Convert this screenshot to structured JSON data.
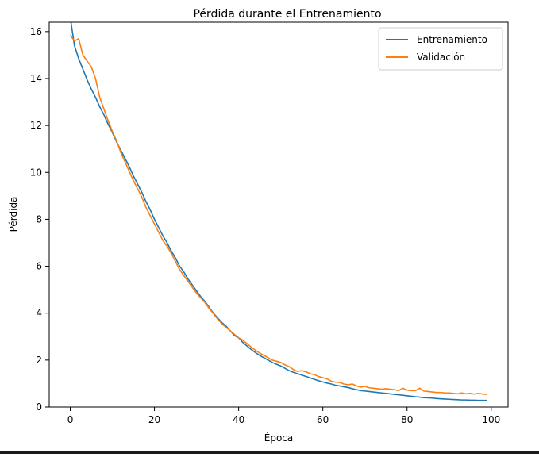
{
  "chart_data": {
    "type": "line",
    "title": "Pérdida durante el Entrenamiento",
    "xlabel": "Época",
    "ylabel": "Pérdida",
    "xlim": [
      -5,
      104
    ],
    "ylim": [
      0,
      16.4
    ],
    "xticks": [
      0,
      20,
      40,
      60,
      80,
      100
    ],
    "yticks": [
      0,
      2,
      4,
      6,
      8,
      10,
      12,
      14,
      16
    ],
    "grid": false,
    "legend_position": "top-right",
    "x": [
      0,
      1,
      2,
      3,
      4,
      5,
      6,
      7,
      8,
      9,
      10,
      11,
      12,
      13,
      14,
      15,
      16,
      17,
      18,
      19,
      20,
      21,
      22,
      23,
      24,
      25,
      26,
      27,
      28,
      29,
      30,
      31,
      32,
      33,
      34,
      35,
      36,
      37,
      38,
      39,
      40,
      41,
      42,
      43,
      44,
      45,
      46,
      47,
      48,
      49,
      50,
      51,
      52,
      53,
      54,
      55,
      56,
      57,
      58,
      59,
      60,
      61,
      62,
      63,
      64,
      65,
      66,
      67,
      68,
      69,
      70,
      71,
      72,
      73,
      74,
      75,
      76,
      77,
      78,
      79,
      80,
      81,
      82,
      83,
      84,
      85,
      86,
      87,
      88,
      89,
      90,
      91,
      92,
      93,
      94,
      95,
      96,
      97,
      98,
      99
    ],
    "series": [
      {
        "name": "Entrenamiento",
        "color": "#1f77b4",
        "values": [
          16.6,
          15.4,
          14.85,
          14.4,
          13.95,
          13.55,
          13.2,
          12.8,
          12.45,
          12.05,
          11.7,
          11.3,
          10.95,
          10.6,
          10.25,
          9.85,
          9.5,
          9.15,
          8.75,
          8.4,
          8.0,
          7.65,
          7.3,
          7.0,
          6.65,
          6.35,
          6.0,
          5.75,
          5.45,
          5.2,
          4.95,
          4.7,
          4.5,
          4.25,
          4.0,
          3.8,
          3.6,
          3.45,
          3.25,
          3.05,
          2.95,
          2.75,
          2.6,
          2.45,
          2.32,
          2.2,
          2.1,
          2.0,
          1.9,
          1.82,
          1.75,
          1.65,
          1.55,
          1.48,
          1.42,
          1.36,
          1.3,
          1.24,
          1.18,
          1.12,
          1.07,
          1.02,
          0.98,
          0.93,
          0.9,
          0.86,
          0.83,
          0.78,
          0.74,
          0.7,
          0.68,
          0.66,
          0.64,
          0.62,
          0.6,
          0.58,
          0.56,
          0.54,
          0.52,
          0.5,
          0.48,
          0.46,
          0.44,
          0.42,
          0.4,
          0.39,
          0.38,
          0.36,
          0.35,
          0.34,
          0.33,
          0.32,
          0.31,
          0.3,
          0.3,
          0.29,
          0.29,
          0.28,
          0.28,
          0.28
        ]
      },
      {
        "name": "Validación",
        "color": "#ff7f0e",
        "values": [
          15.85,
          15.6,
          15.7,
          15.0,
          14.75,
          14.5,
          14.0,
          13.2,
          12.7,
          12.2,
          11.75,
          11.35,
          10.85,
          10.45,
          10.05,
          9.65,
          9.3,
          8.95,
          8.5,
          8.15,
          7.8,
          7.45,
          7.1,
          6.85,
          6.55,
          6.2,
          5.85,
          5.6,
          5.35,
          5.1,
          4.85,
          4.65,
          4.45,
          4.2,
          3.98,
          3.75,
          3.55,
          3.4,
          3.25,
          3.1,
          2.95,
          2.85,
          2.7,
          2.55,
          2.42,
          2.3,
          2.2,
          2.1,
          2.0,
          1.95,
          1.9,
          1.8,
          1.72,
          1.6,
          1.52,
          1.55,
          1.5,
          1.42,
          1.38,
          1.3,
          1.25,
          1.2,
          1.1,
          1.06,
          1.05,
          0.98,
          0.95,
          0.98,
          0.9,
          0.85,
          0.88,
          0.82,
          0.8,
          0.78,
          0.76,
          0.78,
          0.76,
          0.74,
          0.7,
          0.8,
          0.72,
          0.7,
          0.7,
          0.8,
          0.68,
          0.66,
          0.64,
          0.62,
          0.62,
          0.6,
          0.6,
          0.58,
          0.56,
          0.6,
          0.56,
          0.58,
          0.55,
          0.58,
          0.55,
          0.54
        ]
      }
    ]
  }
}
